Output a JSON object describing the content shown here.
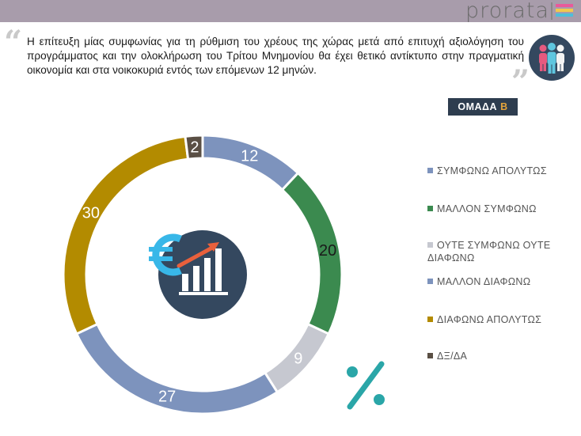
{
  "brand": {
    "name": "prorata",
    "bar_colors": [
      "#e95a9b",
      "#f2c94c",
      "#4dbfd9"
    ]
  },
  "question": {
    "text": "Η επίτευξη μίας συμφωνίας για τη ρύθμιση του χρέους της χώρας μετά από επιτυχή αξιολόγηση του προγράμματος και την ολοκλήρωση του Τρίτου Μνημονίου θα έχει θετικό αντίκτυπο στην πραγματική οικονομία και στα νοικοκυριά εντός των επόμενων 12 μηνών."
  },
  "group_badge": {
    "prefix": "ΟΜΑΔΑ",
    "letter": "Β"
  },
  "icons": {
    "quote_open": "quote-open-icon",
    "quote_close": "quote-close-icon",
    "people": "people-group-icon",
    "center": "euro-growth-chart-icon",
    "percent": "percent-icon"
  },
  "chart_data": {
    "type": "pie",
    "donut": true,
    "categories": [
      "ΣΥΜΦΩΝΩ ΑΠΟΛΥΤΩΣ",
      "ΜΑΛΛΟΝ ΣΥΜΦΩΝΩ",
      "ΟΥΤΕ ΣΥΜΦΩΝΩ ΟΥΤΕ ΔΙΑΦΩΝΩ",
      "ΜΑΛΛΟΝ ΔΙΑΦΩΝΩ",
      "ΔΙΑΦΩΝΩ ΑΠΟΛΥΤΩΣ",
      "ΔΞ/ΔΑ"
    ],
    "values": [
      12,
      20,
      9,
      27,
      30,
      2
    ],
    "colors": [
      "#7d93bd",
      "#3b8a4f",
      "#c6c8d0",
      "#7d93bd",
      "#b38b00",
      "#5a4f44"
    ],
    "legend_position": "right",
    "title": "",
    "xlabel": "",
    "ylabel": ""
  },
  "legend_items": [
    {
      "label": "ΣΥΜΦΩΝΩ ΑΠΟΛΥΤΩΣ",
      "color": "#7d93bd"
    },
    {
      "label": "ΜΑΛΛΟΝ ΣΥΜΦΩΝΩ",
      "color": "#3b8a4f"
    },
    {
      "label": "ΟΥΤΕ ΣΥΜΦΩΝΩ ΟΥΤΕ ΔΙΑΦΩΝΩ",
      "color": "#c6c8d0"
    },
    {
      "label": "ΜΑΛΛΟΝ ΔΙΑΦΩΝΩ",
      "color": "#7d93bd"
    },
    {
      "label": "ΔΙΑΦΩΝΩ ΑΠΟΛΥΤΩΣ",
      "color": "#b38b00"
    },
    {
      "label": "ΔΞ/ΔΑ",
      "color": "#5a4f44"
    }
  ]
}
